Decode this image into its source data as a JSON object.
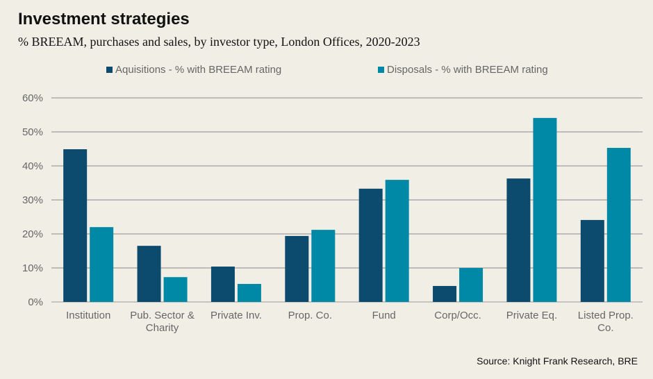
{
  "title": "Investment strategies",
  "subtitle": "% BREEAM, purchases and sales, by investor type, London Offices, 2020-2023",
  "source": "Source: Knight Frank Research, BRE",
  "chart_data": {
    "type": "bar",
    "title": "Investment strategies",
    "xlabel": "",
    "ylabel": "",
    "ylim": [
      0,
      60
    ],
    "yticks": [
      "0%",
      "10%",
      "20%",
      "30%",
      "40%",
      "50%",
      "60%"
    ],
    "ytick_values": [
      0,
      10,
      20,
      30,
      40,
      50,
      60
    ],
    "grid": true,
    "legend_position": "top",
    "categories": [
      [
        "Institution"
      ],
      [
        "Pub. Sector &",
        "Charity"
      ],
      [
        "Private Inv."
      ],
      [
        "Prop. Co."
      ],
      [
        "Fund"
      ],
      [
        "Corp/Occ."
      ],
      [
        "Private Eq."
      ],
      [
        "Listed Prop.",
        "Co."
      ]
    ],
    "series": [
      {
        "name": "Aquisitions - % with BREEAM rating",
        "color": "#0c4a6e",
        "values": [
          44.9,
          16.5,
          10.4,
          19.4,
          33.3,
          4.7,
          36.3,
          24.1
        ]
      },
      {
        "name": "Disposals - % with BREEAM rating",
        "color": "#0089a7",
        "values": [
          22.0,
          7.3,
          5.3,
          21.2,
          35.9,
          10.0,
          54.1,
          45.3
        ]
      }
    ]
  }
}
